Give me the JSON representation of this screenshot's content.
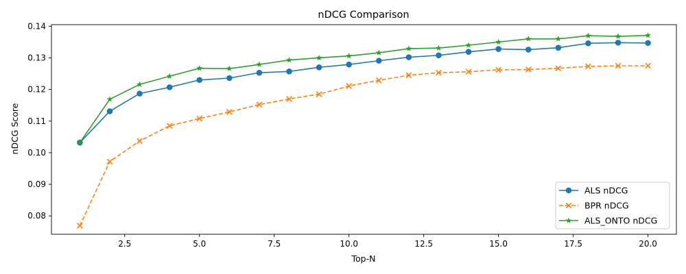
{
  "chart_data": {
    "type": "line",
    "title": "nDCG Comparison",
    "xlabel": "Top-N",
    "ylabel": "nDCG Score",
    "xlim": [
      0.05,
      20.95
    ],
    "ylim": [
      0.0742,
      0.1405
    ],
    "xticks": [
      2.5,
      5.0,
      7.5,
      10.0,
      12.5,
      15.0,
      17.5,
      20.0
    ],
    "xtick_labels": [
      "2.5",
      "5.0",
      "7.5",
      "10.0",
      "12.5",
      "15.0",
      "17.5",
      "20.0"
    ],
    "yticks": [
      0.08,
      0.09,
      0.1,
      0.11,
      0.12,
      0.13,
      0.14
    ],
    "ytick_labels": [
      "0.08",
      "0.09",
      "0.10",
      "0.11",
      "0.12",
      "0.13",
      "0.14"
    ],
    "grid": false,
    "legend_position": "lower-right",
    "x": [
      1,
      2,
      3,
      4,
      5,
      6,
      7,
      8,
      9,
      10,
      11,
      12,
      13,
      14,
      15,
      16,
      17,
      18,
      19,
      20
    ],
    "series": [
      {
        "name": "ALS nDCG",
        "color": "#1f77b4",
        "marker": "circle",
        "linestyle": "solid",
        "values": [
          0.1032,
          0.1131,
          0.1187,
          0.1207,
          0.123,
          0.1236,
          0.1253,
          0.1257,
          0.127,
          0.1279,
          0.1291,
          0.1302,
          0.1308,
          0.1319,
          0.1328,
          0.1326,
          0.1332,
          0.1346,
          0.1348,
          0.1347
        ]
      },
      {
        "name": "BPR nDCG",
        "color": "#ff7f0e",
        "marker": "x",
        "linestyle": "dashed",
        "values": [
          0.0769,
          0.0972,
          0.1037,
          0.1085,
          0.1108,
          0.1129,
          0.1152,
          0.117,
          0.1185,
          0.1211,
          0.1229,
          0.1245,
          0.1253,
          0.1256,
          0.1262,
          0.1263,
          0.1267,
          0.1273,
          0.1275,
          0.1275
        ]
      },
      {
        "name": "ALS_ONTO nDCG",
        "color": "#2ca02c",
        "marker": "star",
        "linestyle": "solid",
        "values": [
          0.1032,
          0.1169,
          0.1216,
          0.1242,
          0.1267,
          0.1266,
          0.1279,
          0.1293,
          0.13,
          0.1306,
          0.1316,
          0.1329,
          0.1331,
          0.134,
          0.135,
          0.136,
          0.136,
          0.137,
          0.1368,
          0.1371
        ]
      }
    ]
  }
}
